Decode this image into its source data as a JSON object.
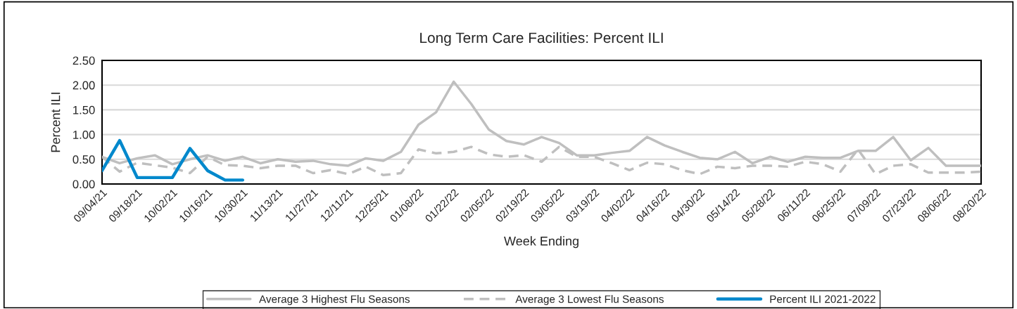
{
  "chart_data": {
    "type": "line",
    "title": "Long Term Care Facilities: Percent ILI",
    "xlabel": "Week Ending",
    "ylabel": "Percent ILI",
    "categories": [
      "09/04/21",
      null,
      "09/18/21",
      null,
      "10/02/21",
      null,
      "10/16/21",
      null,
      "10/30/21",
      null,
      "11/13/21",
      null,
      "11/27/21",
      null,
      "12/11/21",
      null,
      "12/25/21",
      null,
      "01/08/22",
      null,
      "01/22/22",
      null,
      "02/05/22",
      null,
      "02/19/22",
      null,
      "03/05/22",
      null,
      "03/19/22",
      null,
      "04/02/22",
      null,
      "04/16/22",
      null,
      "04/30/22",
      null,
      "05/14/22",
      null,
      "05/28/22",
      null,
      "06/11/22",
      null,
      "06/25/22",
      null,
      "07/09/22",
      null,
      "07/23/22",
      null,
      "08/06/22",
      null,
      "08/20/22"
    ],
    "series": [
      {
        "name": "Average 3 Highest Flu Seasons",
        "color": "#bfbfbf",
        "line_style": "solid",
        "values": [
          0.55,
          0.42,
          0.52,
          0.58,
          0.4,
          0.5,
          0.58,
          0.47,
          0.55,
          0.42,
          0.5,
          0.45,
          0.47,
          0.4,
          0.37,
          0.52,
          0.47,
          0.65,
          1.2,
          1.45,
          2.07,
          1.62,
          1.1,
          0.87,
          0.8,
          0.95,
          0.83,
          0.58,
          0.58,
          0.63,
          0.67,
          0.95,
          0.78,
          0.65,
          0.53,
          0.5,
          0.65,
          0.42,
          0.55,
          0.45,
          0.55,
          0.53,
          0.53,
          0.67,
          0.67,
          0.95,
          0.48,
          0.73,
          0.37,
          0.37,
          0.37
        ]
      },
      {
        "name": "Average 3 Lowest Flu Seasons",
        "color": "#bfbfbf",
        "line_style": "dashed",
        "values": [
          0.55,
          0.25,
          0.43,
          0.38,
          0.33,
          0.22,
          0.55,
          0.38,
          0.37,
          0.32,
          0.37,
          0.37,
          0.22,
          0.28,
          0.2,
          0.35,
          0.18,
          0.22,
          0.7,
          0.62,
          0.65,
          0.75,
          0.6,
          0.55,
          0.58,
          0.45,
          0.75,
          0.55,
          0.55,
          0.42,
          0.28,
          0.43,
          0.4,
          0.28,
          0.2,
          0.35,
          0.32,
          0.37,
          0.37,
          0.35,
          0.45,
          0.4,
          0.25,
          0.7,
          0.2,
          0.37,
          0.4,
          0.23,
          0.23,
          0.23,
          0.25
        ]
      },
      {
        "name": "Percent ILI 2021-2022",
        "color": "#0088cc",
        "line_style": "solid",
        "values": [
          0.27,
          0.88,
          0.13,
          0.13,
          0.13,
          0.72,
          0.27,
          0.08,
          0.08,
          null,
          null,
          null,
          null,
          null,
          null,
          null,
          null,
          null,
          null,
          null,
          null,
          null,
          null,
          null,
          null,
          null,
          null,
          null,
          null,
          null,
          null,
          null,
          null,
          null,
          null,
          null,
          null,
          null,
          null,
          null,
          null,
          null,
          null,
          null,
          null,
          null,
          null,
          null,
          null,
          null,
          null
        ]
      }
    ],
    "ylim": [
      0,
      2.5
    ],
    "yticks": [
      {
        "value": 0,
        "label": "0.00"
      },
      {
        "value": 0.5,
        "label": "0.50"
      },
      {
        "value": 1,
        "label": "1.00"
      },
      {
        "value": 1.5,
        "label": "1.50"
      },
      {
        "value": 2,
        "label": "2.00"
      },
      {
        "value": 2.5,
        "label": "2.50"
      }
    ],
    "grid": "y",
    "legend": "bottom"
  }
}
